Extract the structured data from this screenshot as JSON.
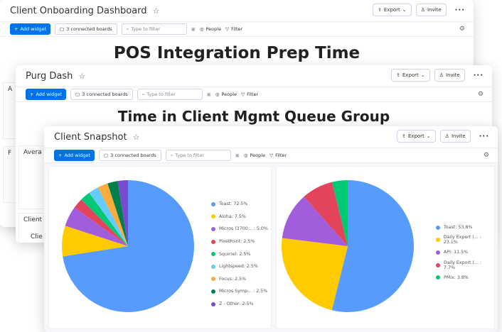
{
  "common": {
    "export": "Export",
    "invite": "Invite",
    "add_widget": "Add widget",
    "connected": "3 connected boards",
    "filter_placeholder": "Type to filter",
    "people": "People",
    "filter": "Filter"
  },
  "windows": [
    {
      "title": "Client Onboarding Dashboard",
      "widget_title": "POS Integration Prep Time",
      "side_fragments": [
        "A",
        "F"
      ]
    },
    {
      "title": "Purg Dash",
      "widget_title": "Time in Client Mgmt Queue Group",
      "side_fragments": [
        "Avera",
        "Client",
        "Clie"
      ]
    },
    {
      "title": "Client Snapshot"
    }
  ],
  "chart_data": [
    {
      "type": "pie",
      "legend": "right",
      "slices": [
        {
          "label": "Toast: 72.5%",
          "value": 72.5,
          "color": "#579bfc"
        },
        {
          "label": "Aloha: 7.5%",
          "value": 7.5,
          "color": "#ffcb00"
        },
        {
          "label": "Micros (3700... : 5.0%",
          "value": 5.0,
          "color": "#a25ddc"
        },
        {
          "label": "PixelPoint: 2.5%",
          "value": 2.5,
          "color": "#e2445c"
        },
        {
          "label": "Squirrel: 2.5%",
          "value": 2.5,
          "color": "#00c875"
        },
        {
          "label": "Lightspeed: 2.5%",
          "value": 2.5,
          "color": "#66ccff"
        },
        {
          "label": "Focus: 2.5%",
          "value": 2.5,
          "color": "#fdab3d"
        },
        {
          "label": "Micros Symp... : 2.5%",
          "value": 2.5,
          "color": "#037f4c"
        },
        {
          "label": "Z - Other: 2.5%",
          "value": 2.5,
          "color": "#784bd1"
        }
      ]
    },
    {
      "type": "pie",
      "legend": "right",
      "slices": [
        {
          "label": "Toast: 53.8%",
          "value": 53.8,
          "color": "#579bfc"
        },
        {
          "label": "Daily Export (... : 23.1%",
          "value": 23.1,
          "color": "#ffcb00"
        },
        {
          "label": "API: 11.5%",
          "value": 11.5,
          "color": "#a25ddc"
        },
        {
          "label": "Daily Export (... : 7.7%",
          "value": 7.7,
          "color": "#e2445c"
        },
        {
          "label": "PMix: 3.8%",
          "value": 3.8,
          "color": "#00c875"
        }
      ]
    }
  ]
}
